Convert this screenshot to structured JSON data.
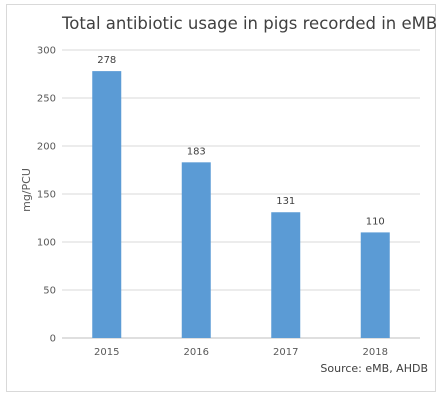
{
  "chart_data": {
    "type": "bar",
    "title": "Total antibiotic usage in pigs recorded in eMB",
    "ylabel": "mg/PCU",
    "xlabel": "",
    "categories": [
      "2015",
      "2016",
      "2017",
      "2018"
    ],
    "values": [
      278,
      183,
      131,
      110
    ],
    "data_labels": [
      "278",
      "183",
      "131",
      "110"
    ],
    "ylim": [
      0,
      300
    ],
    "yticks": [
      "0",
      "50",
      "100",
      "150",
      "200",
      "250",
      "300"
    ],
    "grid": true,
    "legend": "none",
    "bar_color": "#5b9bd5",
    "source": "Source: eMB, AHDB"
  }
}
